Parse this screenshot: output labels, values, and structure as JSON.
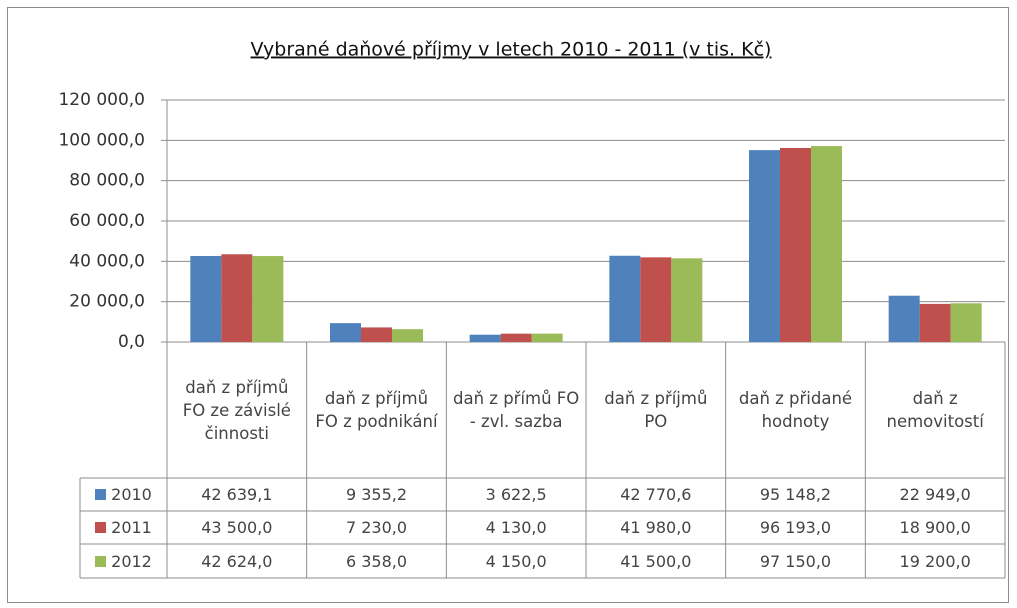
{
  "chart_data": {
    "type": "bar",
    "title": "Vybrané daňové příjmy v letech  2010 - 2011 (v tis. Kč)",
    "categories": [
      "daň z příjmů FO ze závislé činnosti",
      "daň z příjmů FO z podnikání",
      "daň z přímů FO - zvl. sazba",
      "daň z příjmů PO",
      "daň z přidané hodnoty",
      "daň z nemovitostí"
    ],
    "series": [
      {
        "name": "2010",
        "color": "#4f81bd",
        "values": [
          42639.1,
          9355.2,
          3622.5,
          42770.6,
          95148.2,
          22949.0
        ],
        "value_labels": [
          "42 639,1",
          "9 355,2",
          "3 622,5",
          "42 770,6",
          "95 148,2",
          "22 949,0"
        ]
      },
      {
        "name": "2011",
        "color": "#c0504d",
        "values": [
          43500.0,
          7230.0,
          4130.0,
          41980.0,
          96193.0,
          18900.0
        ],
        "value_labels": [
          "43 500,0",
          "7 230,0",
          "4 130,0",
          "41 980,0",
          "96 193,0",
          "18 900,0"
        ]
      },
      {
        "name": "2012",
        "color": "#9bbb59",
        "values": [
          42624.0,
          6358.0,
          4150.0,
          41500.0,
          97150.0,
          19200.0
        ],
        "value_labels": [
          "42 624,0",
          "6 358,0",
          "4 150,0",
          "41 500,0",
          "97 150,0",
          "19 200,0"
        ]
      }
    ],
    "ylim": [
      0,
      120000
    ],
    "yticks": [
      {
        "value": 0,
        "label": "0,0"
      },
      {
        "value": 20000,
        "label": "20 000,0"
      },
      {
        "value": 40000,
        "label": "40 000,0"
      },
      {
        "value": 60000,
        "label": "60 000,0"
      },
      {
        "value": 80000,
        "label": "80 000,0"
      },
      {
        "value": 100000,
        "label": "100 000,0"
      },
      {
        "value": 120000,
        "label": "120 000,0"
      }
    ],
    "grid": true
  }
}
